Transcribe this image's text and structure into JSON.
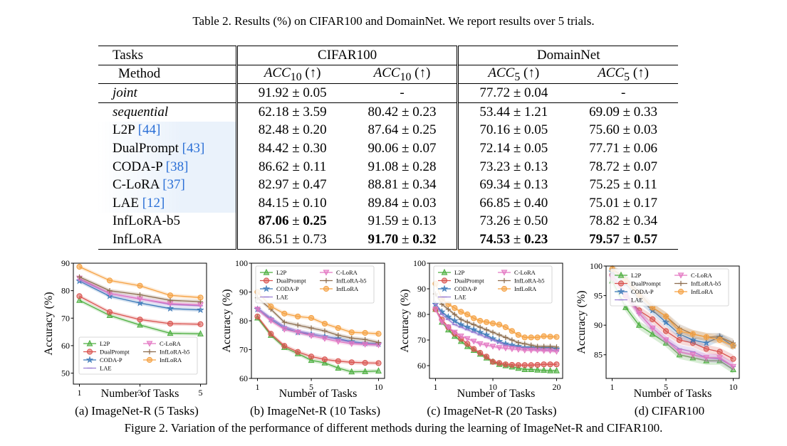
{
  "table_caption": "Table 2. Results (%) on CIFAR100 and DomainNet. We report results over 5 trials.",
  "header": {
    "tasks": "Tasks",
    "cifar": "CIFAR100",
    "domainnet": "DomainNet",
    "method": "Method",
    "acc10": "ACC",
    "sub10": "10",
    "arrow": "(↑)",
    "acc5": "ACC",
    "sub5": "5"
  },
  "rows": [
    {
      "method": "joint",
      "ref": "",
      "c1": "91.92 ± 0.05",
      "c2": "-",
      "d1": "77.72 ± 0.04",
      "d2": "-"
    },
    {
      "method": "sequential",
      "ref": "",
      "c1": "62.18 ± 3.59",
      "c2": "80.42 ± 0.23",
      "d1": "53.44 ± 1.21",
      "d2": "69.09 ± 0.33"
    },
    {
      "method": "L2P ",
      "ref": "[44]",
      "c1": "82.48 ± 0.20",
      "c2": "87.64 ± 0.25",
      "d1": "70.16 ± 0.05",
      "d2": "75.60 ± 0.03"
    },
    {
      "method": "DualPrompt ",
      "ref": "[43]",
      "c1": "84.42 ± 0.30",
      "c2": "90.06 ± 0.07",
      "d1": "72.14 ± 0.05",
      "d2": "77.71 ± 0.06"
    },
    {
      "method": "CODA-P ",
      "ref": "[38]",
      "c1": "86.62 ± 0.11",
      "c2": "91.08 ± 0.28",
      "d1": "73.23 ± 0.13",
      "d2": "78.72 ± 0.07"
    },
    {
      "method": "C-LoRA ",
      "ref": "[37]",
      "c1": "82.97 ± 0.47",
      "c2": "88.81 ± 0.34",
      "d1": "69.34 ± 0.13",
      "d2": "75.25 ± 0.11"
    },
    {
      "method": "LAE ",
      "ref": "[12]",
      "c1": "84.15 ± 0.10",
      "c2": "89.84 ± 0.03",
      "d1": "66.85 ± 0.40",
      "d2": "75.01 ± 0.17"
    },
    {
      "method": "InfLoRA-b5",
      "ref": "",
      "c1a": "87.06",
      "c1b": " ± ",
      "c1c": "0.25",
      "c2": "91.59 ± 0.13",
      "d1": "73.26 ± 0.50",
      "d2": "78.82 ± 0.34"
    },
    {
      "method": "InfLoRA",
      "ref": "",
      "c1": "86.51 ± 0.73",
      "c2a": "91.70",
      "c2b": " ± ",
      "c2c": "0.32",
      "d1a": "74.53",
      "d1b": " ± ",
      "d1c": "0.23",
      "d2a": "79.57",
      "d2b": " ± ",
      "d2c": "0.57"
    }
  ],
  "figure_caption": "Figure 2. Variation of the performance of different methods during the learning of ImageNet-R and CIFAR100.",
  "subcaptions": [
    "(a) ImageNet-R (5 Tasks)",
    "(b) ImageNet-R (10 Tasks)",
    "(c) ImageNet-R (20 Tasks)",
    "(d) CIFAR100"
  ],
  "xlabel": "Number of Tasks",
  "ylabel": "Accuracy (%)",
  "colors": {
    "L2P": "#4cae3f",
    "DualPrompt": "#d9534f",
    "CODA-P": "#3a78b8",
    "LAE": "#9b7fd4",
    "C-LoRA": "#e377c2",
    "InfLoRA-b5": "#8c6d4f",
    "InfLoRA": "#f5a142"
  },
  "chart_data": [
    {
      "type": "line",
      "x": [
        1,
        2,
        3,
        4,
        5
      ],
      "xticks": [
        1,
        3,
        5
      ],
      "ylim": [
        46,
        90
      ],
      "yticks": [
        50,
        60,
        70,
        80,
        90
      ],
      "xlabel": "Number of Tasks",
      "ylabel": "Accuracy (%)",
      "legend": "bottom",
      "series": [
        {
          "name": "L2P",
          "values": [
            76.5,
            71.0,
            67.5,
            64.5,
            64.3
          ]
        },
        {
          "name": "DualPrompt",
          "values": [
            78.0,
            72.2,
            69.5,
            68.0,
            67.8
          ]
        },
        {
          "name": "CODA-P",
          "values": [
            83.5,
            78.0,
            75.5,
            73.5,
            73.0
          ]
        },
        {
          "name": "LAE",
          "values": [
            84.0,
            79.0,
            77.0,
            75.0,
            74.5
          ]
        },
        {
          "name": "C-LoRA",
          "values": [
            84.5,
            79.0,
            77.0,
            75.3,
            74.8
          ]
        },
        {
          "name": "InfLoRA-b5",
          "values": [
            85.0,
            80.0,
            78.5,
            76.5,
            76.0
          ]
        },
        {
          "name": "InfLoRA",
          "values": [
            88.7,
            83.7,
            81.8,
            78.3,
            77.5
          ]
        }
      ]
    },
    {
      "type": "line",
      "x": [
        1,
        2,
        3,
        4,
        5,
        6,
        7,
        8,
        9,
        10
      ],
      "xticks": [
        1,
        5,
        10
      ],
      "ylim": [
        60,
        100
      ],
      "yticks": [
        60,
        70,
        80,
        90,
        100
      ],
      "xlabel": "Number of Tasks",
      "ylabel": "Accuracy (%)",
      "legend": "top",
      "series": [
        {
          "name": "L2P",
          "values": [
            81.0,
            75.0,
            70.8,
            68.6,
            66.3,
            65.4,
            63.6,
            62.3,
            62.4,
            62.6
          ]
        },
        {
          "name": "DualPrompt",
          "values": [
            81.5,
            75.5,
            71.3,
            69.2,
            67.6,
            66.6,
            66.0,
            65.6,
            65.4,
            65.3
          ]
        },
        {
          "name": "CODA-P",
          "values": [
            84.0,
            80.5,
            77.5,
            76.0,
            75.3,
            74.5,
            73.8,
            72.8,
            72.2,
            72.0
          ]
        },
        {
          "name": "LAE",
          "values": [
            84.5,
            81.0,
            78.0,
            76.5,
            75.5,
            74.5,
            73.5,
            72.5,
            72.0,
            71.8
          ]
        },
        {
          "name": "C-LoRA",
          "values": [
            84.0,
            80.0,
            77.0,
            76.0,
            74.8,
            73.8,
            72.8,
            72.0,
            71.8,
            71.6
          ]
        },
        {
          "name": "InfLoRA-b5",
          "values": [
            88.0,
            84.0,
            79.5,
            78.5,
            77.5,
            76.5,
            75.0,
            74.0,
            73.5,
            72.5
          ]
        },
        {
          "name": "InfLoRA",
          "values": [
            90.0,
            85.0,
            82.5,
            81.5,
            81.0,
            79.0,
            77.5,
            76.0,
            75.8,
            75.5
          ]
        }
      ]
    },
    {
      "type": "line",
      "x": [
        1,
        2,
        3,
        4,
        5,
        6,
        7,
        8,
        9,
        10,
        11,
        12,
        13,
        14,
        15,
        16,
        17,
        18,
        19,
        20
      ],
      "xticks": [
        1,
        10,
        20
      ],
      "ylim": [
        55,
        100
      ],
      "yticks": [
        60,
        70,
        80,
        90,
        100
      ],
      "xlabel": "Number of Tasks",
      "ylabel": "Accuracy (%)",
      "legend": "top",
      "series": [
        {
          "name": "L2P",
          "values": [
            82.0,
            77.0,
            74.0,
            71.5,
            69.5,
            67.5,
            66.0,
            64.5,
            63.0,
            61.5,
            60.5,
            60.0,
            59.5,
            59.0,
            58.5,
            58.5,
            58.3,
            58.2,
            58.0,
            58.0
          ]
        },
        {
          "name": "DualPrompt",
          "values": [
            82.0,
            78.0,
            75.0,
            72.5,
            70.5,
            68.5,
            66.5,
            65.0,
            63.5,
            61.5,
            61.0,
            60.5,
            60.3,
            60.2,
            60.2,
            60.2,
            60.3,
            60.5,
            60.5,
            60.5
          ]
        },
        {
          "name": "CODA-P",
          "values": [
            84.0,
            81.0,
            79.0,
            77.5,
            76.0,
            75.0,
            74.0,
            73.0,
            72.0,
            70.5,
            69.5,
            68.5,
            68.0,
            67.5,
            67.0,
            67.0,
            66.8,
            66.8,
            66.8,
            66.5
          ]
        },
        {
          "name": "LAE",
          "values": [
            84.0,
            80.0,
            78.0,
            76.0,
            75.0,
            74.0,
            73.0,
            72.0,
            71.0,
            70.0,
            69.0,
            68.0,
            67.5,
            67.0,
            66.8,
            66.5,
            66.3,
            66.2,
            66.0,
            65.8
          ]
        },
        {
          "name": "C-LoRA",
          "values": [
            82.0,
            77.0,
            75.0,
            73.0,
            71.5,
            70.5,
            69.5,
            68.5,
            68.0,
            67.5,
            67.0,
            66.8,
            66.5,
            66.3,
            66.0,
            66.0,
            66.0,
            65.8,
            65.8,
            65.5
          ]
        },
        {
          "name": "InfLoRA-b5",
          "values": [
            88.0,
            84.0,
            82.0,
            80.0,
            78.0,
            77.0,
            76.0,
            75.0,
            74.0,
            73.0,
            72.0,
            71.0,
            70.0,
            69.0,
            68.5,
            68.0,
            67.5,
            67.5,
            67.5,
            67.3
          ]
        },
        {
          "name": "InfLoRA",
          "values": [
            92.0,
            86.0,
            84.0,
            82.5,
            81.0,
            80.0,
            78.5,
            77.5,
            77.0,
            76.5,
            76.0,
            75.0,
            73.5,
            72.0,
            71.0,
            71.0,
            71.0,
            71.5,
            71.3,
            71.2
          ]
        }
      ]
    },
    {
      "type": "line",
      "x": [
        1,
        2,
        3,
        4,
        5,
        6,
        7,
        8,
        9,
        10
      ],
      "xticks": [
        1,
        5,
        10
      ],
      "ylim": [
        81,
        100
      ],
      "yticks": [
        85,
        90,
        95,
        100
      ],
      "xlabel": "Number of Tasks",
      "ylabel": "Accuracy (%)",
      "legend": "top",
      "series": [
        {
          "name": "L2P",
          "values": [
            97.5,
            93.0,
            90.0,
            88.5,
            87.0,
            85.0,
            84.5,
            84.0,
            84.0,
            82.5
          ]
        },
        {
          "name": "DualPrompt",
          "values": [
            98.5,
            95.0,
            92.5,
            91.0,
            89.0,
            87.5,
            87.0,
            86.0,
            85.5,
            84.3
          ]
        },
        {
          "name": "CODA-P",
          "values": [
            99.0,
            97.0,
            94.5,
            92.5,
            90.5,
            88.5,
            87.5,
            87.0,
            88.0,
            86.5
          ]
        },
        {
          "name": "LAE",
          "values": [
            98.5,
            95.5,
            92.0,
            89.5,
            87.5,
            86.0,
            85.5,
            84.5,
            84.3,
            83.0
          ]
        },
        {
          "name": "C-LoRA",
          "values": [
            98.0,
            95.0,
            92.0,
            89.5,
            87.5,
            85.5,
            85.0,
            84.5,
            84.5,
            83.0
          ]
        },
        {
          "name": "InfLoRA-b5",
          "values": [
            99.5,
            98.0,
            95.5,
            93.0,
            91.5,
            89.5,
            88.5,
            88.0,
            88.0,
            87.0
          ]
        },
        {
          "name": "InfLoRA",
          "values": [
            99.5,
            97.5,
            95.0,
            93.0,
            91.5,
            89.0,
            88.5,
            88.0,
            87.5,
            86.5
          ]
        }
      ]
    }
  ]
}
